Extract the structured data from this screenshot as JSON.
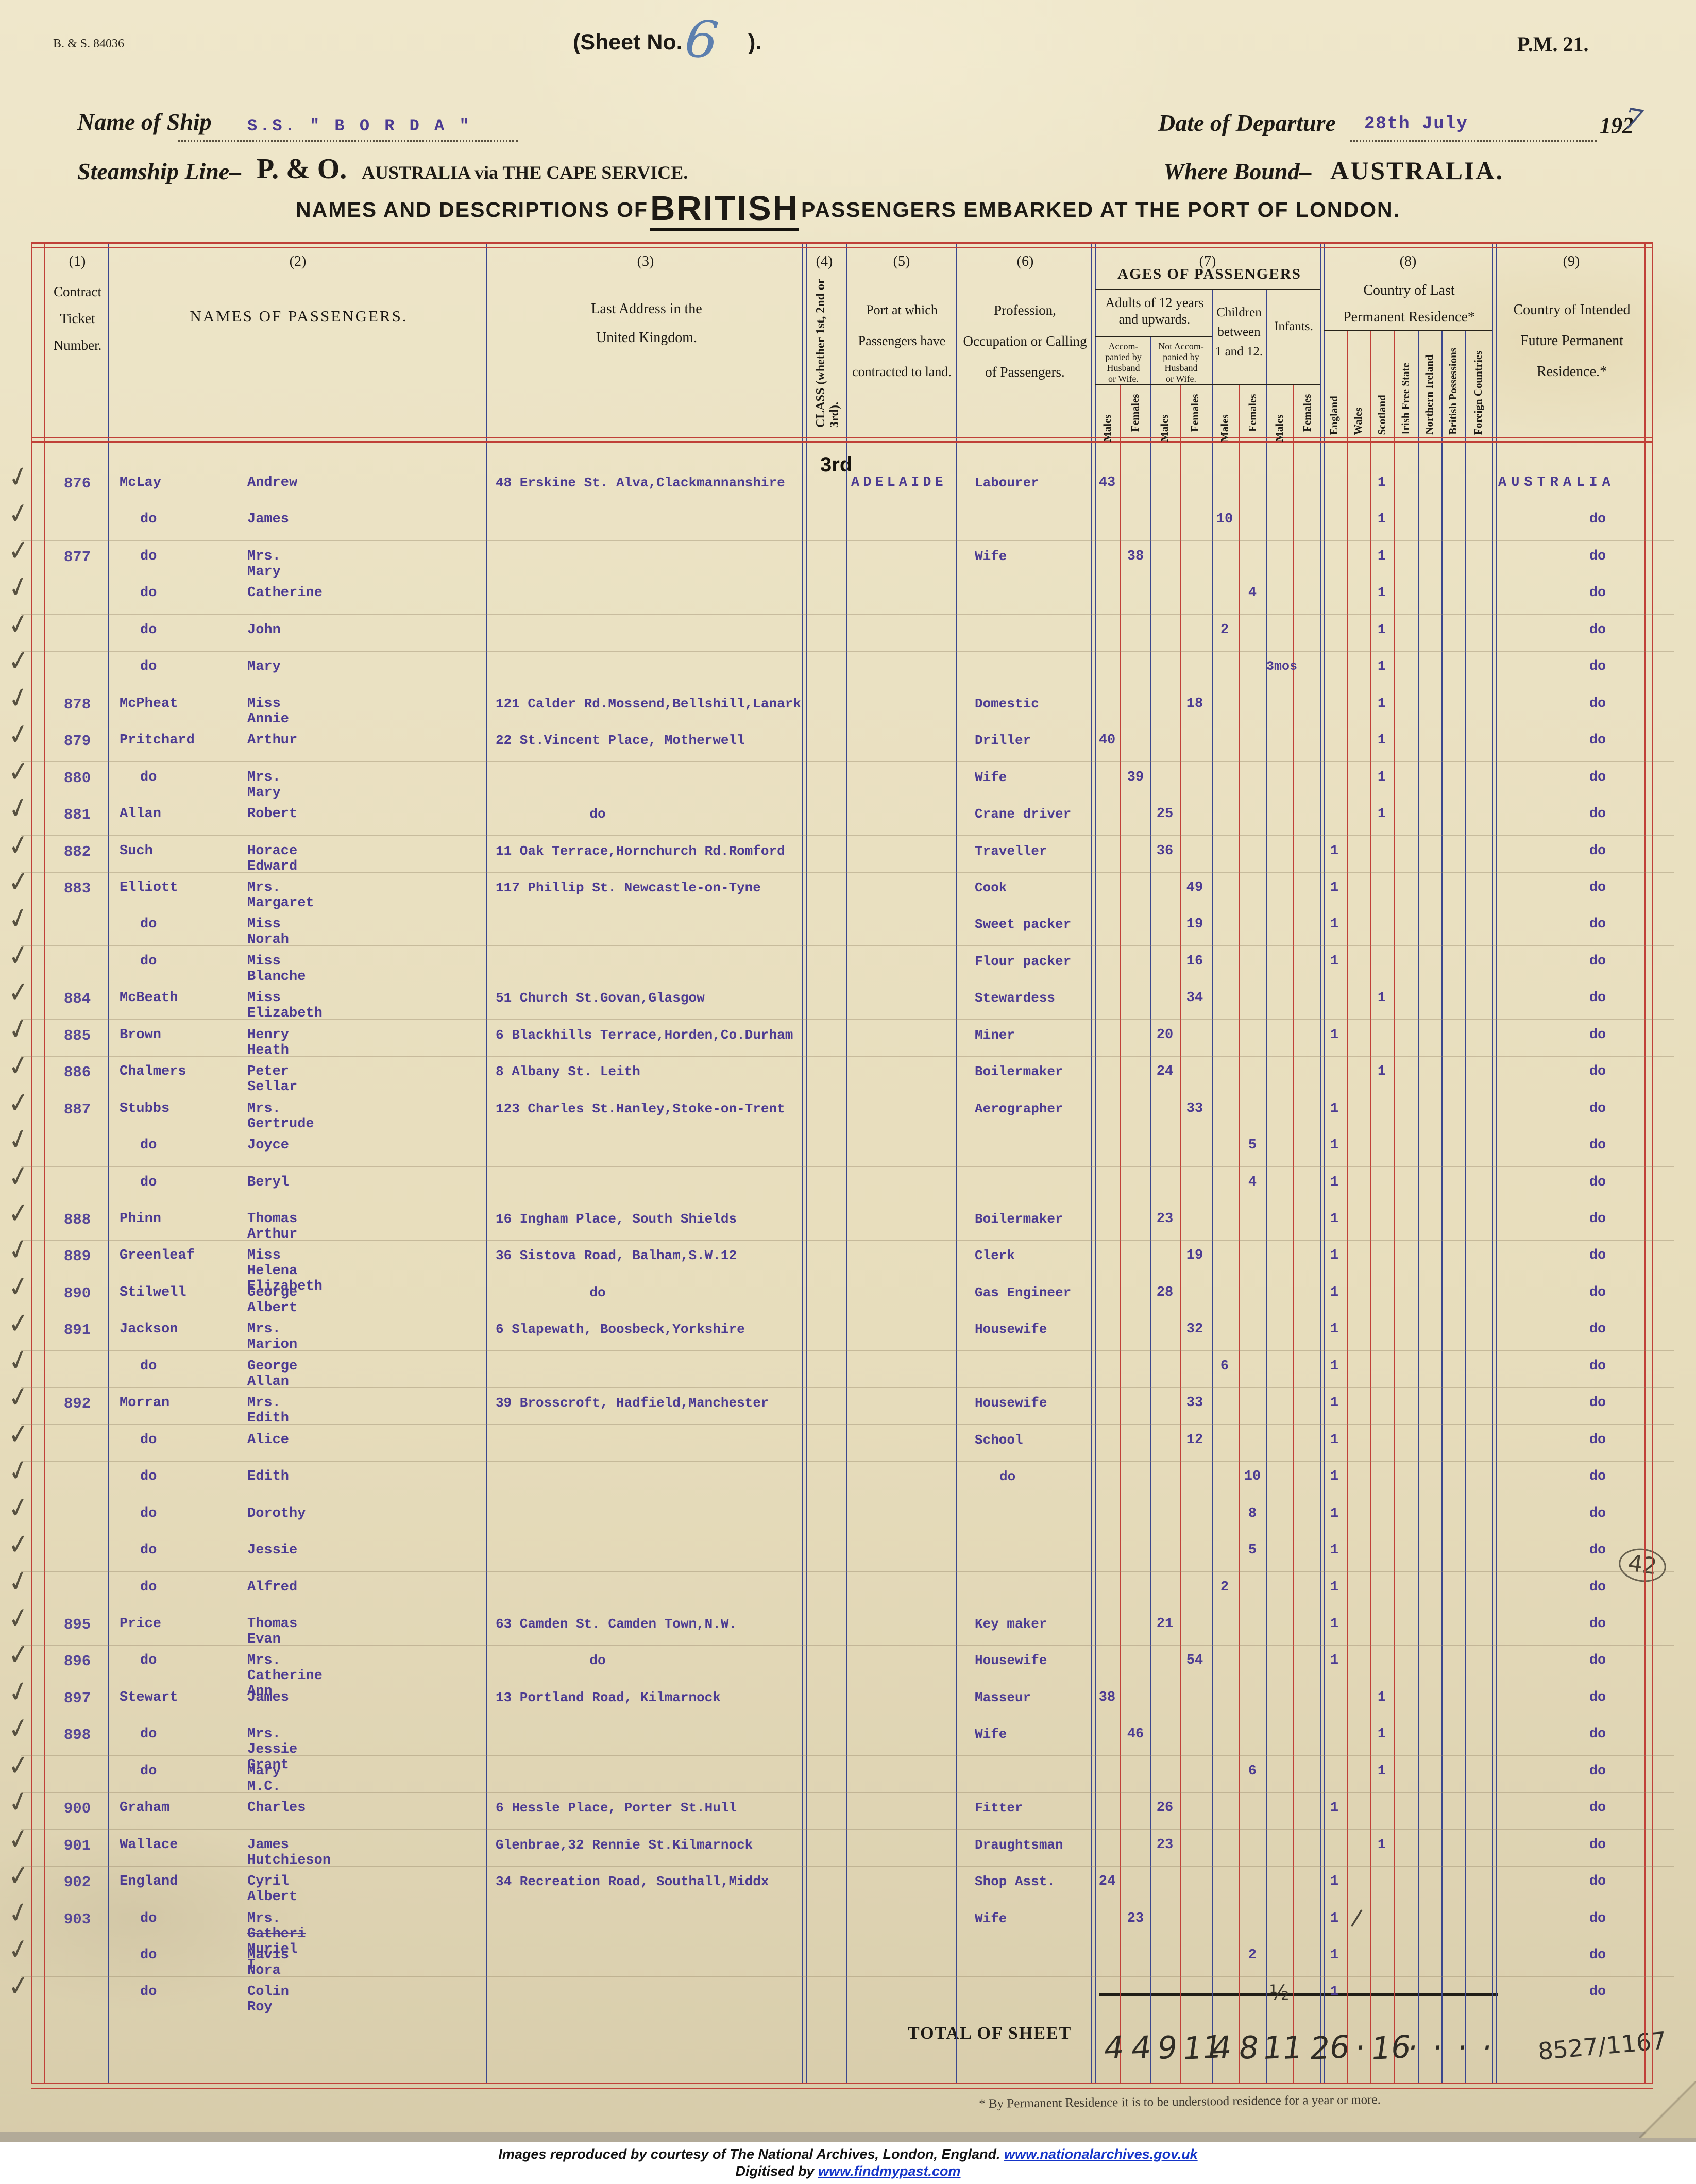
{
  "document": {
    "form_ref": "B. & S.  84036",
    "sheet_no_label": "(Sheet No.",
    "sheet_no_value": "6",
    "sheet_no_close": ").",
    "pm_ref": "P.M.  21.",
    "name_of_ship_label": "Name of Ship",
    "name_of_ship_value": "S.S. \" B O R D A \"",
    "date_of_departure_label": "Date of Departure",
    "date_of_departure_value": "28th July",
    "year_printed": "192",
    "year_hand": "7",
    "steamship_line_label": "Steamship Line–",
    "steamship_line_value": "P. & O.",
    "steamship_service": "AUSTRALIA via THE CAPE SERVICE.",
    "where_bound_label": "Where Bound–",
    "where_bound_value": "AUSTRALIA.",
    "title_prefix": "NAMES AND DESCRIPTIONS OF",
    "title_nationality": "BRITISH",
    "title_suffix": "PASSENGERS EMBARKED AT THE PORT OF LONDON."
  },
  "table_header": {
    "col_numbers": [
      "(1)",
      "(2)",
      "(3)",
      "(4)",
      "(5)",
      "(6)",
      "(7)",
      "(8)",
      "(9)"
    ],
    "col1_lines": [
      "Contract",
      "Ticket",
      "Number."
    ],
    "col2": "NAMES OF PASSENGERS.",
    "col3_lines": [
      "Last Address in the",
      "United Kingdom."
    ],
    "col4_vertical": "CLASS (whether 1st, 2nd or 3rd).",
    "col5_lines": [
      "Port at which",
      "Passengers have",
      "contracted to land."
    ],
    "col6_lines": [
      "Profession,",
      "Occupation or Calling",
      "of Passengers."
    ],
    "col7_title": "AGES OF PASSENGERS",
    "adults_lines": [
      "Adults of 12 years",
      "and upwards."
    ],
    "accompanied_lines": [
      "Accom-",
      "panied by",
      "Husband",
      "or Wife."
    ],
    "not_accompanied_lines": [
      "Not Accom-",
      "panied by",
      "Husband",
      "or Wife."
    ],
    "children_lines": [
      "Children",
      "between",
      "1 and 12."
    ],
    "infants": "Infants.",
    "males_label": "Males",
    "females_label": "Females",
    "col8_lines": [
      "Country of Last",
      "Permanent Residence*"
    ],
    "residence_cols": [
      "England",
      "Wales",
      "Scotland",
      "Irish Free State",
      "Northern Ireland",
      "British Possessions",
      "Foreign Countries"
    ],
    "col9_lines": [
      "Country of Intended",
      "Future Permanent",
      "Residence.*"
    ],
    "class_value": "3rd"
  },
  "rows": [
    {
      "t": "876",
      "s": "McLay",
      "f": "Andrew",
      "a": "48 Erskine St. Alva,Clackmannanshire",
      "p": "ADELAIDE",
      "o": "Labourer",
      "age": "43",
      "ac": "am",
      "r": "scotland",
      "d": "AUSTRALIA"
    },
    {
      "t": "",
      "s": "do",
      "f": "James",
      "a": "",
      "o": "",
      "age": "10",
      "ac": "cm",
      "r": "scotland",
      "d": "do"
    },
    {
      "t": "877",
      "s": "do",
      "f": "Mrs. Mary",
      "a": "",
      "o": "Wife",
      "age": "38",
      "ac": "af",
      "r": "scotland",
      "d": "do"
    },
    {
      "t": "",
      "s": "do",
      "f": "Catherine",
      "a": "",
      "o": "",
      "age": "4",
      "ac": "cf",
      "r": "scotland",
      "d": "do"
    },
    {
      "t": "",
      "s": "do",
      "f": "John",
      "a": "",
      "o": "",
      "age": "2",
      "ac": "cm",
      "r": "scotland",
      "d": "do"
    },
    {
      "t": "",
      "s": "do",
      "f": "Mary",
      "a": "",
      "o": "",
      "age": "3mos",
      "ac": "if",
      "r": "scotland",
      "d": "do"
    },
    {
      "t": "878",
      "s": "McPheat",
      "f": "Miss Annie",
      "a": "121 Calder Rd.Mossend,Bellshill,Lanark",
      "o": "Domestic",
      "age": "18",
      "ac": "nf",
      "r": "scotland",
      "d": "do"
    },
    {
      "t": "879",
      "s": "Pritchard",
      "f": "Arthur",
      "a": "22 St.Vincent Place, Motherwell",
      "o": "Driller",
      "age": "40",
      "ac": "am",
      "r": "scotland",
      "d": "do"
    },
    {
      "t": "880",
      "s": "do",
      "f": "Mrs. Mary",
      "a": "",
      "o": "Wife",
      "age": "39",
      "ac": "af",
      "r": "scotland",
      "d": "do"
    },
    {
      "t": "881",
      "s": "Allan",
      "f": "Robert",
      "a": "do",
      "o": "Crane driver",
      "age": "25",
      "ac": "nm",
      "r": "scotland",
      "d": "do"
    },
    {
      "t": "882",
      "s": "Such",
      "f": "Horace Edward",
      "a": "11 Oak Terrace,Hornchurch Rd.Romford",
      "o": "Traveller",
      "age": "36",
      "ac": "nm",
      "r": "england",
      "d": "do"
    },
    {
      "t": "883",
      "s": "Elliott",
      "f": "Mrs. Margaret",
      "a": "117 Phillip St. Newcastle-on-Tyne",
      "o": "Cook",
      "age": "49",
      "ac": "nf",
      "r": "england",
      "d": "do"
    },
    {
      "t": "",
      "s": "do",
      "f": "Miss Norah",
      "a": "",
      "o": "Sweet packer",
      "age": "19",
      "ac": "nf",
      "r": "england",
      "d": "do"
    },
    {
      "t": "",
      "s": "do",
      "f": "Miss Blanche",
      "a": "",
      "o": "Flour packer",
      "age": "16",
      "ac": "nf",
      "r": "england",
      "d": "do"
    },
    {
      "t": "884",
      "s": "McBeath",
      "f": "Miss Elizabeth",
      "a": "51 Church St.Govan,Glasgow",
      "o": "Stewardess",
      "age": "34",
      "ac": "nf",
      "r": "scotland",
      "d": "do"
    },
    {
      "t": "885",
      "s": "Brown",
      "f": "Henry Heath",
      "a": "6 Blackhills Terrace,Horden,Co.Durham",
      "o": "Miner",
      "age": "20",
      "ac": "nm",
      "r": "england",
      "d": "do"
    },
    {
      "t": "886",
      "s": "Chalmers",
      "f": "Peter Sellar",
      "a": "8 Albany St. Leith",
      "o": "Boilermaker",
      "age": "24",
      "ac": "nm",
      "r": "scotland",
      "d": "do"
    },
    {
      "t": "887",
      "s": "Stubbs",
      "f": "Mrs. Gertrude",
      "a": "123 Charles St.Hanley,Stoke-on-Trent",
      "o": "Aerographer",
      "age": "33",
      "ac": "nf",
      "r": "england",
      "d": "do"
    },
    {
      "t": "",
      "s": "do",
      "f": "Joyce",
      "a": "",
      "o": "",
      "age": "5",
      "ac": "cf",
      "r": "england",
      "d": "do"
    },
    {
      "t": "",
      "s": "do",
      "f": "Beryl",
      "a": "",
      "o": "",
      "age": "4",
      "ac": "cf",
      "r": "england",
      "d": "do"
    },
    {
      "t": "888",
      "s": "Phinn",
      "f": "Thomas Arthur",
      "a": "16 Ingham Place, South Shields",
      "o": "Boilermaker",
      "age": "23",
      "ac": "nm",
      "r": "england",
      "d": "do"
    },
    {
      "t": "889",
      "s": "Greenleaf",
      "f": "Miss Helena Elizabeth",
      "a": "36 Sistova Road, Balham,S.W.12",
      "o": "Clerk",
      "age": "19",
      "ac": "nf",
      "r": "england",
      "d": "do"
    },
    {
      "t": "890",
      "s": "Stilwell",
      "f": "George Albert",
      "a": "do",
      "o": "Gas Engineer",
      "age": "28",
      "ac": "nm",
      "r": "england",
      "d": "do"
    },
    {
      "t": "891",
      "s": "Jackson",
      "f": "Mrs. Marion",
      "a": "6 Slapewath, Boosbeck,Yorkshire",
      "o": "Housewife",
      "age": "32",
      "ac": "nf",
      "r": "england",
      "d": "do"
    },
    {
      "t": "",
      "s": "do",
      "f": "George Allan",
      "a": "",
      "o": "",
      "age": "6",
      "ac": "cm",
      "r": "england",
      "d": "do"
    },
    {
      "t": "892",
      "s": "Morran",
      "f": "Mrs. Edith",
      "a": "39 Brosscroft, Hadfield,Manchester",
      "o": "Housewife",
      "age": "33",
      "ac": "nf",
      "r": "england",
      "d": "do"
    },
    {
      "t": "",
      "s": "do",
      "f": "Alice",
      "a": "",
      "o": "School",
      "age": "12",
      "ac": "nf",
      "r": "england",
      "d": "do"
    },
    {
      "t": "",
      "s": "do",
      "f": "Edith",
      "a": "",
      "o": "do",
      "age": "10",
      "ac": "cf",
      "r": "england",
      "d": "do"
    },
    {
      "t": "",
      "s": "do",
      "f": "Dorothy",
      "a": "",
      "o": "",
      "age": "8",
      "ac": "cf",
      "r": "england",
      "d": "do"
    },
    {
      "t": "",
      "s": "do",
      "f": "Jessie",
      "a": "",
      "o": "",
      "age": "5",
      "ac": "cf",
      "r": "england",
      "d": "do"
    },
    {
      "t": "",
      "s": "do",
      "f": "Alfred",
      "a": "",
      "o": "",
      "age": "2",
      "ac": "cm",
      "r": "england",
      "d": "do"
    },
    {
      "t": "895",
      "s": "Price",
      "f": "Thomas Evan",
      "a": "63 Camden St. Camden Town,N.W.",
      "o": "Key maker",
      "age": "21",
      "ac": "nm",
      "r": "england",
      "d": "do"
    },
    {
      "t": "896",
      "s": "do",
      "f": "Mrs. Catherine Ann",
      "a": "do",
      "o": "Housewife",
      "age": "54",
      "ac": "nf",
      "r": "england",
      "d": "do"
    },
    {
      "t": "897",
      "s": "Stewart",
      "f": "James",
      "a": "13 Portland Road, Kilmarnock",
      "o": "Masseur",
      "age": "38",
      "ac": "am",
      "r": "scotland",
      "d": "do"
    },
    {
      "t": "898",
      "s": "do",
      "f": "Mrs. Jessie Grant",
      "a": "",
      "o": "Wife",
      "age": "46",
      "ac": "af",
      "r": "scotland",
      "d": "do"
    },
    {
      "t": "",
      "s": "do",
      "f": "Mary M.C.",
      "a": "",
      "o": "",
      "age": "6",
      "ac": "cf",
      "r": "scotland",
      "d": "do"
    },
    {
      "t": "900",
      "s": "Graham",
      "f": "Charles",
      "a": "6 Hessle Place, Porter St.Hull",
      "o": "Fitter",
      "age": "26",
      "ac": "nm",
      "r": "england",
      "d": "do"
    },
    {
      "t": "901",
      "s": "Wallace",
      "f": "James Hutchieson",
      "a": "Glenbrae,32 Rennie St.Kilmarnock",
      "o": "Draughtsman",
      "age": "23",
      "ac": "nm",
      "r": "scotland",
      "d": "do"
    },
    {
      "t": "902",
      "s": "England",
      "f": "Cyril Albert",
      "a": "34 Recreation Road, Southall,Middx",
      "o": "Shop Asst.",
      "age": "24",
      "ac": "am",
      "r": "england",
      "d": "do"
    },
    {
      "t": "903",
      "s": "do",
      "f": "Mrs. ",
      "f_strike": "Gatheri",
      "f2": " Muriel I.",
      "a": "",
      "o": "Wife",
      "age": "23",
      "ac": "af",
      "r": "england",
      "res_slash": true,
      "d": "do"
    },
    {
      "t": "",
      "s": "do",
      "f": "Mavis Nora",
      "a": "",
      "o": "",
      "age": "2",
      "ac": "cf",
      "r": "england",
      "d": "do"
    },
    {
      "t": "",
      "s": "do",
      "f": "Colin Roy",
      "a": "",
      "o": "",
      "age": "½",
      "ac": "im",
      "age_hand": true,
      "r": "england",
      "d": "do"
    }
  ],
  "totals": {
    "label": "TOTAL OF SHEET",
    "values": [
      "4",
      "4",
      "9",
      "11",
      "4",
      "8",
      "1",
      "1",
      "26",
      "·",
      "16",
      "·",
      "·",
      "·",
      "·"
    ],
    "ref_hand": "8527/1167",
    "circled_note": "42"
  },
  "footnote": "* By Permanent Residence it is to be understood residence for a year or more.",
  "credits": {
    "line1": "Images reproduced by courtesy of The National Archives, London, England.",
    "link1": "www.nationalarchives.gov.uk",
    "line2_prefix": "Digitised by",
    "link2": "www.findmypast.com"
  }
}
